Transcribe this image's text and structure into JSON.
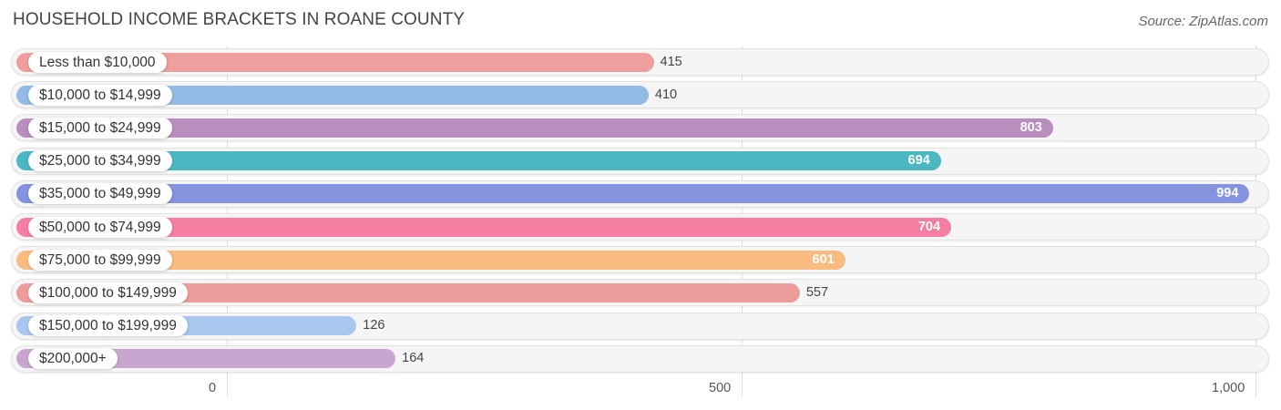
{
  "header": {
    "title": "HOUSEHOLD INCOME BRACKETS IN ROANE COUNTY",
    "source": "Source: ZipAtlas.com"
  },
  "chart_data": {
    "type": "bar",
    "orientation": "horizontal",
    "title": "HOUSEHOLD INCOME BRACKETS IN ROANE COUNTY",
    "xlabel": "",
    "ylabel": "",
    "xlim": [
      0,
      1000
    ],
    "grid": true,
    "categories": [
      "Less than $10,000",
      "$10,000 to $14,999",
      "$15,000 to $24,999",
      "$25,000 to $34,999",
      "$35,000 to $49,999",
      "$50,000 to $74,999",
      "$75,000 to $99,999",
      "$100,000 to $149,999",
      "$150,000 to $199,999",
      "$200,000+"
    ],
    "values": [
      415,
      410,
      803,
      694,
      994,
      704,
      601,
      557,
      126,
      164
    ],
    "value_labels": [
      "415",
      "410",
      "803",
      "694",
      "994",
      "704",
      "601",
      "557",
      "126",
      "164"
    ],
    "colors": [
      "#ee9e9c",
      "#93b9e5",
      "#b98dbd",
      "#4ab7c2",
      "#8393de",
      "#f57ea2",
      "#f9bb80",
      "#ec9d9b",
      "#a8c6ee",
      "#c9a6cf"
    ],
    "x_ticks": [
      {
        "value": 0,
        "label": "0"
      },
      {
        "value": 500,
        "label": "500"
      },
      {
        "value": 1000,
        "label": "1,000"
      }
    ]
  }
}
